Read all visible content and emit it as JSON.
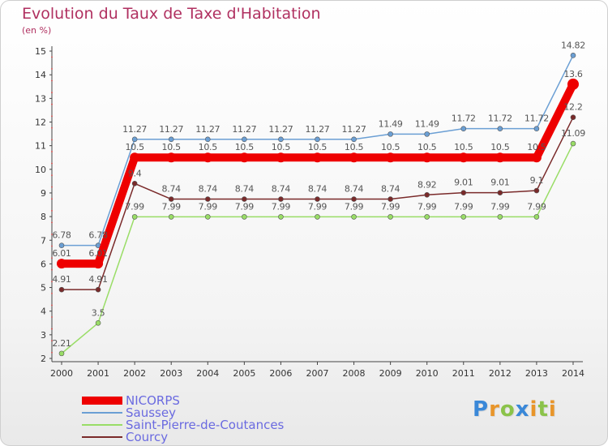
{
  "chart_data": {
    "type": "line",
    "title": "Evolution du Taux de Taxe d'Habitation",
    "subtitle": "(en %)",
    "xlabel": "",
    "ylabel": "",
    "categories": [
      "2000",
      "2001",
      "2002",
      "2003",
      "2004",
      "2005",
      "2006",
      "2007",
      "2008",
      "2009",
      "2010",
      "2011",
      "2012",
      "2013",
      "2014"
    ],
    "ylim": [
      2,
      15
    ],
    "yticks": [
      "2",
      "3",
      "4",
      "5",
      "6",
      "7",
      "8",
      "9",
      "10",
      "11",
      "12",
      "13",
      "14",
      "15"
    ],
    "series": [
      {
        "name": "NICORPS",
        "color": "#ee0000",
        "values": [
          6.01,
          6.01,
          10.5,
          10.5,
          10.5,
          10.5,
          10.5,
          10.5,
          10.5,
          10.5,
          10.5,
          10.5,
          10.5,
          10.5,
          13.6
        ],
        "labels": [
          "6.01",
          "6.01",
          "10.5",
          "10.5",
          "10.5",
          "10.5",
          "10.5",
          "10.5",
          "10.5",
          "10.5",
          "10.5",
          "10.5",
          "10.5",
          "10.5",
          "13.6"
        ]
      },
      {
        "name": "Saussey",
        "color": "#6b9fd4",
        "values": [
          6.78,
          6.78,
          11.27,
          11.27,
          11.27,
          11.27,
          11.27,
          11.27,
          11.27,
          11.49,
          11.49,
          11.72,
          11.72,
          11.72,
          14.82
        ],
        "labels": [
          "6.78",
          "6.78",
          "11.27",
          "11.27",
          "11.27",
          "11.27",
          "11.27",
          "11.27",
          "11.27",
          "11.49",
          "11.49",
          "11.72",
          "11.72",
          "11.72",
          "14.82"
        ]
      },
      {
        "name": "Saint-Pierre-de-Coutances",
        "color": "#99dd66",
        "values": [
          2.21,
          3.5,
          7.99,
          7.99,
          7.99,
          7.99,
          7.99,
          7.99,
          7.99,
          7.99,
          7.99,
          7.99,
          7.99,
          7.99,
          11.09
        ],
        "labels": [
          "2.21",
          "3.5",
          "7.99",
          "7.99",
          "7.99",
          "7.99",
          "7.99",
          "7.99",
          "7.99",
          "7.99",
          "7.99",
          "7.99",
          "7.99",
          "7.99",
          "11.09"
        ]
      },
      {
        "name": "Courcy",
        "color": "#7a2a2a",
        "values": [
          4.91,
          4.91,
          9.4,
          8.74,
          8.74,
          8.74,
          8.74,
          8.74,
          8.74,
          8.74,
          8.92,
          9.01,
          9.01,
          9.1,
          12.2
        ],
        "labels": [
          "4.91",
          "4.91",
          "9.4",
          "8.74",
          "8.74",
          "8.74",
          "8.74",
          "8.74",
          "8.74",
          "8.74",
          "8.92",
          "9.01",
          "9.01",
          "9.1",
          "12.2"
        ]
      }
    ],
    "legend_position": "bottom-left",
    "grid": false
  },
  "brand": {
    "letters": [
      "P",
      "r",
      "o",
      "x",
      "i",
      "t",
      "i"
    ],
    "colors": [
      "#3a88d8",
      "#e8952a",
      "#8bc34a",
      "#3a88d8",
      "#e8952a",
      "#8bc34a",
      "#e8952a"
    ]
  }
}
